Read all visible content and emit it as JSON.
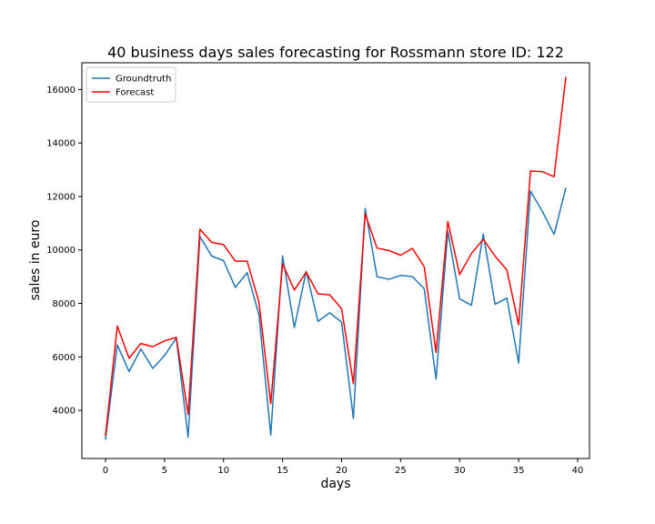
{
  "chart_data": {
    "type": "line",
    "title": "40 business days sales forecasting for Rossmann store ID: 122",
    "xlabel": "days",
    "ylabel": "sales in euro",
    "xlim": [
      -2,
      41
    ],
    "ylim": [
      2200,
      17000
    ],
    "xticks": [
      0,
      5,
      10,
      15,
      20,
      25,
      30,
      35,
      40
    ],
    "yticks": [
      4000,
      6000,
      8000,
      10000,
      12000,
      14000,
      16000
    ],
    "grid": false,
    "legend_position": "top-left",
    "x": [
      0,
      1,
      2,
      3,
      4,
      5,
      6,
      7,
      8,
      9,
      10,
      11,
      12,
      13,
      14,
      15,
      16,
      17,
      18,
      19,
      20,
      21,
      22,
      23,
      24,
      25,
      26,
      27,
      28,
      29,
      30,
      31,
      32,
      33,
      34,
      35,
      36,
      37,
      38,
      39
    ],
    "series": [
      {
        "name": "Groundtruth",
        "color": "#1f77b4",
        "values": [
          2900,
          6450,
          5450,
          6300,
          5570,
          6050,
          6700,
          3000,
          10500,
          9770,
          9600,
          8600,
          9150,
          7580,
          3080,
          9780,
          7100,
          9200,
          7330,
          7650,
          7300,
          3700,
          11550,
          9000,
          8900,
          9050,
          9000,
          8550,
          5170,
          10700,
          8170,
          7930,
          10600,
          7970,
          8200,
          5770,
          12200,
          11450,
          10580,
          12330
        ]
      },
      {
        "name": "Forecast",
        "color": "#ff0000",
        "values": [
          3050,
          7150,
          5950,
          6500,
          6380,
          6600,
          6730,
          3850,
          10780,
          10280,
          10200,
          9580,
          9580,
          8050,
          4250,
          9480,
          8500,
          9170,
          8360,
          8320,
          7800,
          5000,
          11350,
          10070,
          9980,
          9800,
          10060,
          9370,
          6170,
          11060,
          9080,
          9870,
          10400,
          9770,
          9250,
          7200,
          12950,
          12930,
          12740,
          16470
        ]
      }
    ]
  }
}
